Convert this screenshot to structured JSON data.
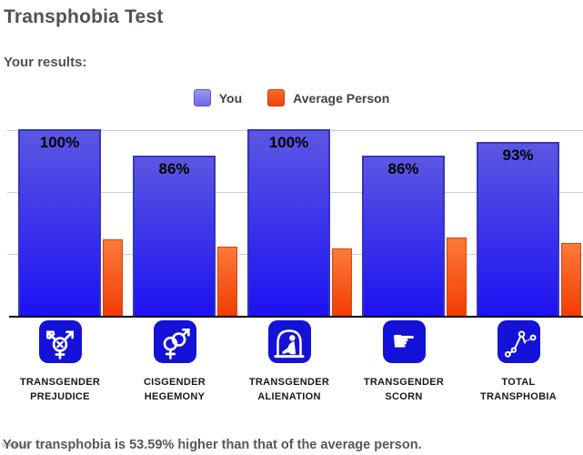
{
  "page": {
    "title": "Transphobia Test",
    "subtitle": "Your results:",
    "footer": "Your transphobia is 53.59% higher than that of the average person.",
    "watermark": "IDRlabs.com"
  },
  "chart_data": {
    "type": "bar",
    "title": "Transphobia Test",
    "xlabel": "",
    "ylabel": "",
    "ylim": [
      0,
      100
    ],
    "grid": "horizontal",
    "gridline_values": [
      100,
      66.7,
      33.3
    ],
    "legend_position": "top",
    "categories": [
      {
        "line1": "TRANSGENDER",
        "line2": "PREJUDICE",
        "icon": "transgender-prejudice-icon"
      },
      {
        "line1": "CISGENDER",
        "line2": "HEGEMONY",
        "icon": "cisgender-hegemony-icon"
      },
      {
        "line1": "TRANSGENDER",
        "line2": "ALIENATION",
        "icon": "transgender-alienation-icon"
      },
      {
        "line1": "TRANSGENDER",
        "line2": "SCORN",
        "icon": "transgender-scorn-icon"
      },
      {
        "line1": "TOTAL",
        "line2": "TRANSPHOBIA",
        "icon": "total-transphobia-icon"
      }
    ],
    "series": [
      {
        "name": "You",
        "color": "#2a1fe8",
        "values": [
          100,
          86,
          100,
          86,
          93
        ],
        "value_labels": [
          "100%",
          "86%",
          "100%",
          "86%",
          "93%"
        ]
      },
      {
        "name": "Average Person",
        "color": "#f04e10",
        "values": [
          41,
          37,
          36,
          42,
          39
        ],
        "value_labels": [
          "",
          "",
          "",
          "",
          ""
        ]
      }
    ]
  }
}
